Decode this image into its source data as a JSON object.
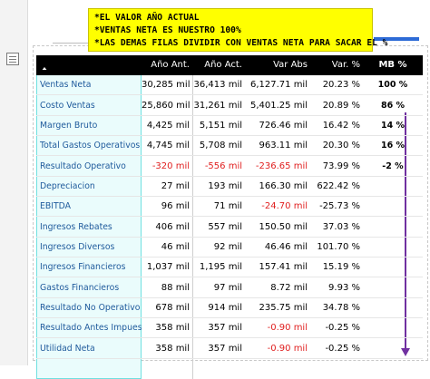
{
  "note": {
    "lines": [
      "*EL VALOR AÑO ACTUAL",
      "*VENTAS NETA ES NUESTRO 100%",
      "*LAS DEMAS FILAS DIVIDIR CON VENTAS NETA PARA SACAR EL %"
    ]
  },
  "colors": {
    "note_bg": "#ffff00",
    "name_band": "#eafcfc",
    "negative": "#e01f1f",
    "arrow": "#7030a0",
    "header_bg": "#000000"
  },
  "icons": {
    "strip": "table-icon",
    "sort": "sort-up-icon",
    "arrow": "down-arrow-icon"
  },
  "table": {
    "headers": {
      "name": "",
      "prev": "Año Ant.",
      "curr": "Año Act.",
      "var_abs": "Var Abs",
      "var_pct": "Var. %",
      "mb_pct": "MB %"
    },
    "rows": [
      {
        "name": "Ventas Neta",
        "prev": "30,285 mil",
        "curr": "36,413 mil",
        "var_abs": "6,127.71 mil",
        "var_pct": "20.23 %",
        "mb_pct": "100 %"
      },
      {
        "name": "Costo Ventas",
        "prev": "25,860 mil",
        "curr": "31,261 mil",
        "var_abs": "5,401.25 mil",
        "var_pct": "20.89 %",
        "mb_pct": "86 %"
      },
      {
        "name": "Margen Bruto",
        "prev": "4,425 mil",
        "curr": "5,151 mil",
        "var_abs": "726.46 mil",
        "var_pct": "16.42 %",
        "mb_pct": "14 %"
      },
      {
        "name": "Total Gastos Operativos",
        "prev": "4,745 mil",
        "curr": "5,708 mil",
        "var_abs": "963.11 mil",
        "var_pct": "20.30 %",
        "mb_pct": "16 %"
      },
      {
        "name": "Resultado Operativo",
        "prev": "-320 mil",
        "curr": "-556 mil",
        "var_abs": "-236.65 mil",
        "var_pct": "73.99 %",
        "mb_pct": "-2 %",
        "neg": [
          "prev",
          "curr",
          "var_abs"
        ]
      },
      {
        "name": "Depreciacion",
        "prev": "27 mil",
        "curr": "193 mil",
        "var_abs": "166.30 mil",
        "var_pct": "622.42 %",
        "mb_pct": ""
      },
      {
        "name": "EBITDA",
        "prev": "96 mil",
        "curr": "71 mil",
        "var_abs": "-24.70 mil",
        "var_pct": "-25.73 %",
        "mb_pct": "",
        "neg": [
          "var_abs"
        ]
      },
      {
        "name": "Ingresos Rebates",
        "prev": "406 mil",
        "curr": "557 mil",
        "var_abs": "150.50 mil",
        "var_pct": "37.03 %",
        "mb_pct": ""
      },
      {
        "name": "Ingresos Diversos",
        "prev": "46 mil",
        "curr": "92 mil",
        "var_abs": "46.46 mil",
        "var_pct": "101.70 %",
        "mb_pct": ""
      },
      {
        "name": "Ingresos Financieros",
        "prev": "1,037 mil",
        "curr": "1,195 mil",
        "var_abs": "157.41 mil",
        "var_pct": "15.19 %",
        "mb_pct": ""
      },
      {
        "name": "Gastos Financieros",
        "prev": "88 mil",
        "curr": "97 mil",
        "var_abs": "8.72 mil",
        "var_pct": "9.93 %",
        "mb_pct": ""
      },
      {
        "name": "Resultado No Operativo",
        "prev": "678 mil",
        "curr": "914 mil",
        "var_abs": "235.75 mil",
        "var_pct": "34.78 %",
        "mb_pct": ""
      },
      {
        "name": "Resultado Antes Impuestos",
        "prev": "358 mil",
        "curr": "357 mil",
        "var_abs": "-0.90 mil",
        "var_pct": "-0.25 %",
        "mb_pct": "",
        "neg": [
          "var_abs"
        ]
      },
      {
        "name": "Utilidad Neta",
        "prev": "358 mil",
        "curr": "357 mil",
        "var_abs": "-0.90 mil",
        "var_pct": "-0.25 %",
        "mb_pct": "",
        "neg": [
          "var_abs"
        ]
      }
    ]
  }
}
